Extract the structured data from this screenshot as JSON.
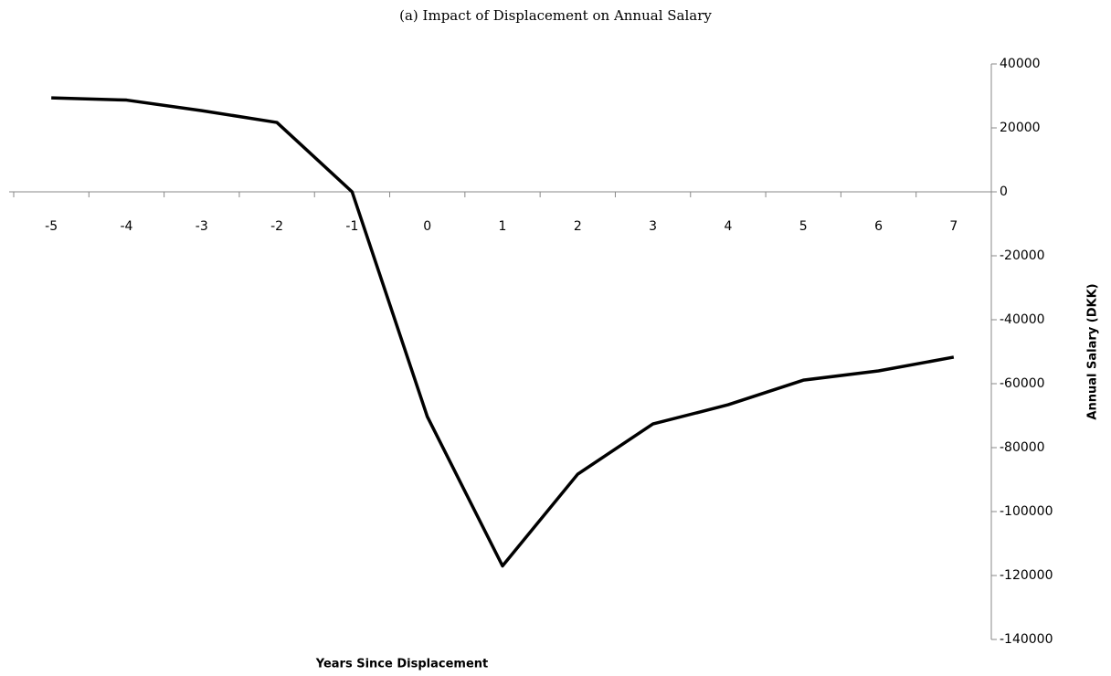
{
  "chart_data": {
    "type": "line",
    "title": "(a) Impact of Displacement on Annual Salary",
    "x_label": "Years Since Displacement",
    "y_label": "Annual Salary (DKK)",
    "categories": [
      "-5",
      "-4",
      "-3",
      "-2",
      "-1",
      "0",
      "1",
      "2",
      "3",
      "4",
      "5",
      "6",
      "7"
    ],
    "series": [
      {
        "name": "Annual Salary",
        "color": "#000000",
        "values": [
          29400,
          28700,
          25400,
          21700,
          0,
          -70300,
          -117000,
          -88300,
          -72600,
          -66600,
          -58900,
          -56000,
          -51700
        ]
      }
    ],
    "ylim": [
      -140000,
      40000
    ],
    "yticks": [
      -140000,
      -120000,
      -100000,
      -80000,
      -60000,
      -40000,
      -20000,
      0,
      20000,
      40000
    ],
    "y_axis_side": "right",
    "grid": false
  }
}
